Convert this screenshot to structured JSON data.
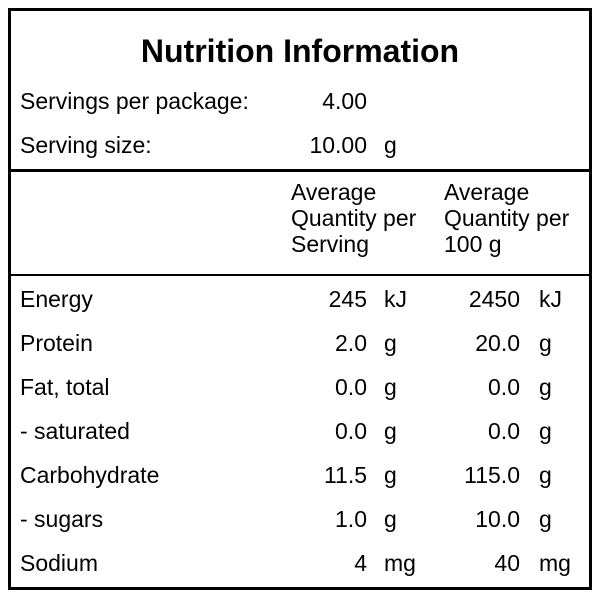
{
  "title": "Nutrition Information",
  "servings_per_package": {
    "label": "Servings per package:",
    "value": "4.00"
  },
  "serving_size": {
    "label": "Serving size:",
    "value": "10.00",
    "unit": "g"
  },
  "columns": {
    "per_serving": [
      "Average",
      "Quantity per",
      "Serving"
    ],
    "per_100g": [
      "Average",
      "Quantity per",
      "100 g"
    ]
  },
  "rows": [
    {
      "name": "Energy",
      "serving": "245",
      "serving_unit": "kJ",
      "per100": "2450",
      "per100_unit": "kJ"
    },
    {
      "name": "Protein",
      "serving": "2.0",
      "serving_unit": "g",
      "per100": "20.0",
      "per100_unit": "g"
    },
    {
      "name": "Fat, total",
      "serving": "0.0",
      "serving_unit": "g",
      "per100": "0.0",
      "per100_unit": "g"
    },
    {
      "name": "- saturated",
      "serving": "0.0",
      "serving_unit": "g",
      "per100": "0.0",
      "per100_unit": "g"
    },
    {
      "name": "Carbohydrate",
      "serving": "11.5",
      "serving_unit": "g",
      "per100": "115.0",
      "per100_unit": "g"
    },
    {
      "name": "- sugars",
      "serving": "1.0",
      "serving_unit": "g",
      "per100": "10.0",
      "per100_unit": "g"
    },
    {
      "name": "Sodium",
      "serving": "4",
      "serving_unit": "mg",
      "per100": "40",
      "per100_unit": "mg"
    }
  ]
}
